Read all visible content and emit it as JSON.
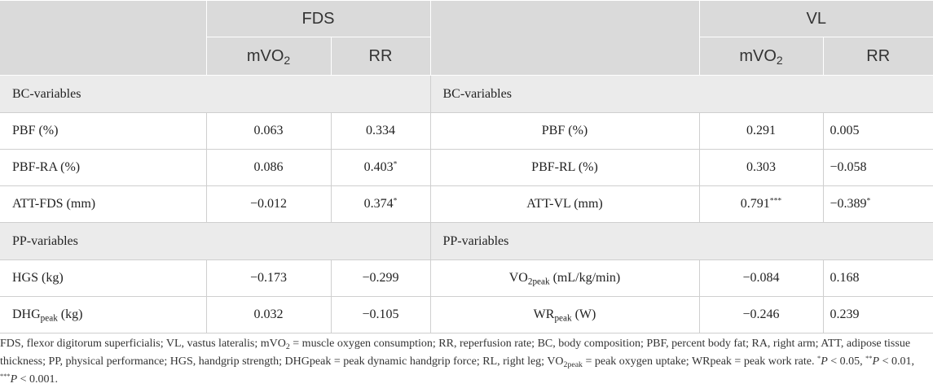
{
  "table": {
    "groups": [
      [
        {
          "t": "FDS"
        }
      ],
      [
        {
          "t": "VL"
        }
      ]
    ],
    "subheaders": [
      [
        {
          "t": "mVO"
        },
        {
          "t": "2",
          "s": "sub"
        }
      ],
      [
        {
          "t": "RR"
        }
      ],
      [
        {
          "t": "mVO"
        },
        {
          "t": "2",
          "s": "sub"
        }
      ],
      [
        {
          "t": "RR"
        }
      ]
    ],
    "sections": [
      {
        "titles": [
          [
            {
              "t": "BC-variables"
            }
          ],
          [
            {
              "t": "BC-variables"
            }
          ]
        ],
        "rows": [
          [
            [
              {
                "t": "PBF (%)"
              }
            ],
            [
              {
                "t": "0.063"
              }
            ],
            [
              {
                "t": "0.334"
              }
            ],
            [
              {
                "t": "PBF (%)"
              }
            ],
            [
              {
                "t": "0.291"
              }
            ],
            [
              {
                "t": "0.005"
              }
            ]
          ],
          [
            [
              {
                "t": "PBF-RA (%)"
              }
            ],
            [
              {
                "t": "0.086"
              }
            ],
            [
              {
                "t": "0.403"
              },
              {
                "t": "*",
                "s": "sup"
              }
            ],
            [
              {
                "t": "PBF-RL (%)"
              }
            ],
            [
              {
                "t": "0.303"
              }
            ],
            [
              {
                "t": "−0.058"
              }
            ]
          ],
          [
            [
              {
                "t": "ATT-FDS (mm)"
              }
            ],
            [
              {
                "t": "−0.012"
              }
            ],
            [
              {
                "t": "0.374"
              },
              {
                "t": "*",
                "s": "sup"
              }
            ],
            [
              {
                "t": "ATT-VL (mm)"
              }
            ],
            [
              {
                "t": "0.791"
              },
              {
                "t": "***",
                "s": "sup"
              }
            ],
            [
              {
                "t": "−0.389"
              },
              {
                "t": "*",
                "s": "sup"
              }
            ]
          ]
        ]
      },
      {
        "titles": [
          [
            {
              "t": "PP-variables"
            }
          ],
          [
            {
              "t": "PP-variables"
            }
          ]
        ],
        "rows": [
          [
            [
              {
                "t": "HGS (kg)"
              }
            ],
            [
              {
                "t": "−0.173"
              }
            ],
            [
              {
                "t": "−0.299"
              }
            ],
            [
              {
                "t": "VO"
              },
              {
                "t": "2peak",
                "s": "sub"
              },
              {
                "t": " (mL/kg/min)"
              }
            ],
            [
              {
                "t": "−0.084"
              }
            ],
            [
              {
                "t": "0.168"
              }
            ]
          ],
          [
            [
              {
                "t": "DHG"
              },
              {
                "t": "peak",
                "s": "sub"
              },
              {
                "t": " (kg)"
              }
            ],
            [
              {
                "t": "0.032"
              }
            ],
            [
              {
                "t": "−0.105"
              }
            ],
            [
              {
                "t": "WR"
              },
              {
                "t": "peak",
                "s": "sub"
              },
              {
                "t": " (W)"
              }
            ],
            [
              {
                "t": "−0.246"
              }
            ],
            [
              {
                "t": "0.239"
              }
            ]
          ]
        ]
      }
    ]
  },
  "footnote": [
    {
      "t": "FDS, flexor digitorum superficialis; VL, vastus lateralis; mVO"
    },
    {
      "t": "2",
      "s": "sub"
    },
    {
      "t": " = muscle oxygen consumption; RR, reperfusion rate; BC, body composition; PBF, percent body fat; RA, right arm; ATT, adipose tissue thickness; PP, physical performance; HGS, handgrip strength; DHGpeak = peak dynamic handgrip force; RL, right leg; VO"
    },
    {
      "t": "2peak",
      "s": "sub"
    },
    {
      "t": " = peak oxygen uptake; WRpeak = peak work rate. "
    },
    {
      "t": "*",
      "s": "sup"
    },
    {
      "t": "P",
      "s": "i"
    },
    {
      "t": " < 0.05, "
    },
    {
      "t": "**",
      "s": "sup"
    },
    {
      "t": "P",
      "s": "i"
    },
    {
      "t": " < 0.01, "
    },
    {
      "t": "***",
      "s": "sup"
    },
    {
      "t": "P",
      "s": "i"
    },
    {
      "t": " < 0.001."
    }
  ]
}
